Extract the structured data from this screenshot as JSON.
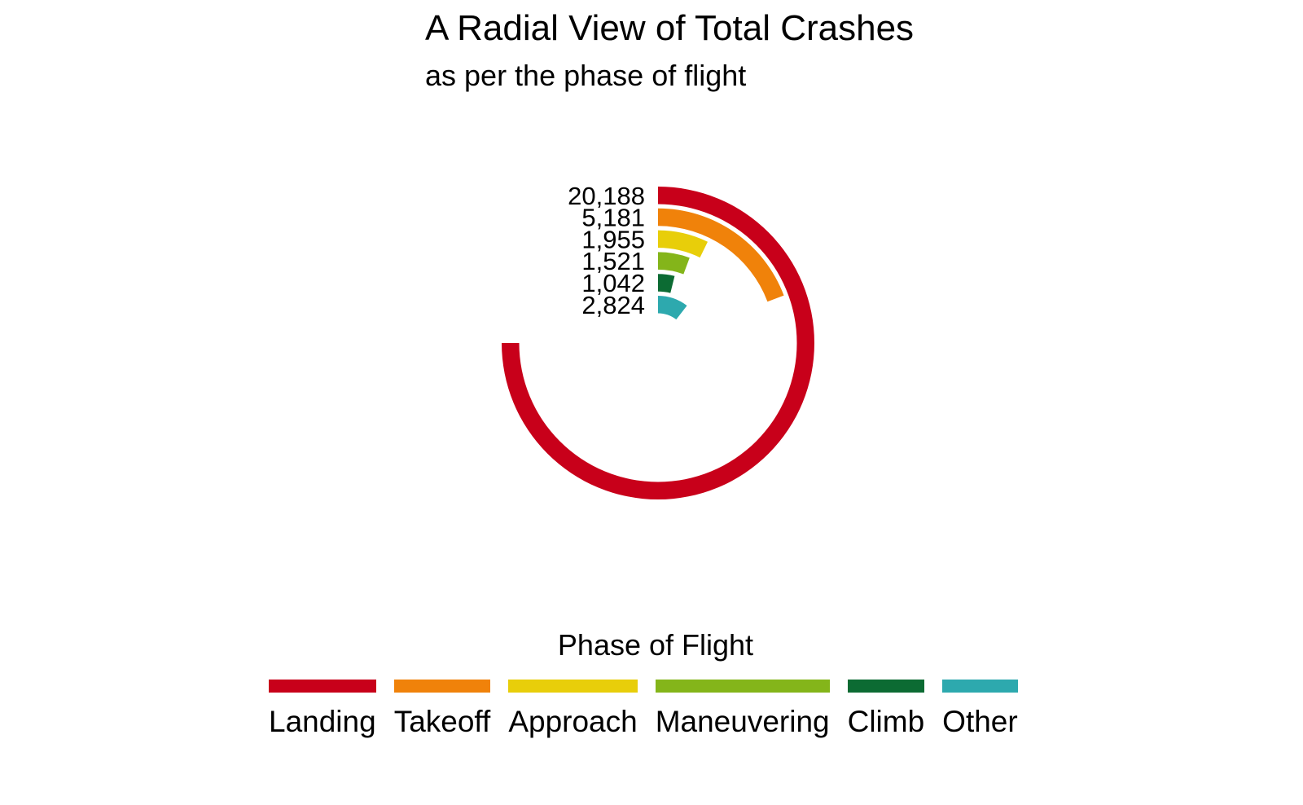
{
  "chart_data": {
    "type": "radial-bar",
    "title": "A Radial View of Total Crashes",
    "subtitle": "as per the phase of flight",
    "max_value": 26917,
    "series": [
      {
        "name": "Landing",
        "value": 20188,
        "label": "20,188",
        "color": "#C8001A"
      },
      {
        "name": "Takeoff",
        "value": 5181,
        "label": "5,181",
        "color": "#F0820A"
      },
      {
        "name": "Approach",
        "value": 1955,
        "label": "1,955",
        "color": "#E8CE0A"
      },
      {
        "name": "Maneuvering",
        "value": 1521,
        "label": "1,521",
        "color": "#84B51A"
      },
      {
        "name": "Climb",
        "value": 1042,
        "label": "1,042",
        "color": "#0C6B33"
      },
      {
        "name": "Other",
        "value": 2824,
        "label": "2,824",
        "color": "#2DA9AE"
      }
    ],
    "legend": {
      "title": "Phase of Flight",
      "position": "bottom"
    }
  }
}
